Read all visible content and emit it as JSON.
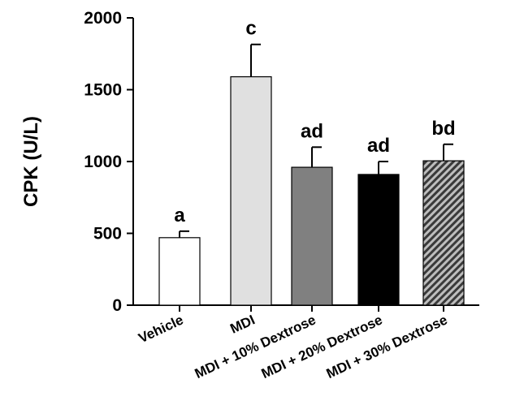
{
  "chart_data": {
    "type": "bar",
    "title": "",
    "xlabel": "",
    "ylabel": "CPK (U/L)",
    "ylim": [
      0,
      2000
    ],
    "yticks": [
      0,
      500,
      1000,
      1500,
      2000
    ],
    "grid": false,
    "categories": [
      "Vehicle",
      "MDI",
      "MDI + 10% Dextrose",
      "MDI + 20% Dextrose",
      "MDI + 30% Dextrose"
    ],
    "values": [
      470,
      1590,
      960,
      910,
      1005
    ],
    "errors": [
      45,
      225,
      140,
      90,
      115
    ],
    "significance_labels": [
      "a",
      "c",
      "ad",
      "ad",
      "bd"
    ],
    "bar_fills": [
      "#ffffff",
      "#e0e0e0",
      "#808080",
      "#000000",
      "hatch"
    ],
    "hatch_colors": {
      "stripe": "#3a3a3a",
      "background": "#bdbdbd"
    }
  }
}
